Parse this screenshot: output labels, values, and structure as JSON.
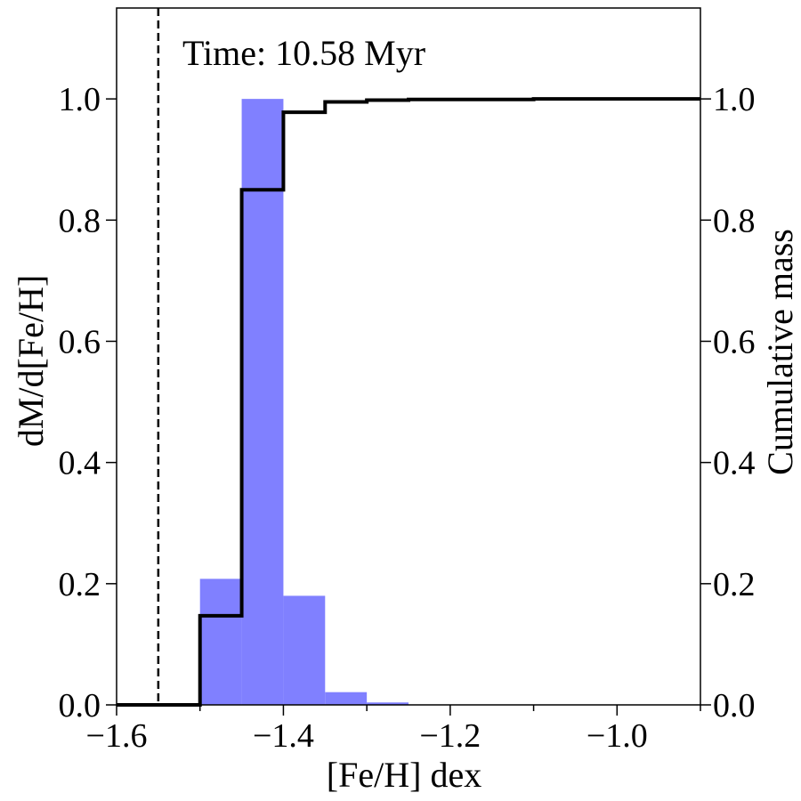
{
  "chart_data": {
    "type": "bar",
    "annotation": "Time: 10.58 Myr",
    "xlabel": "[Fe/H] dex",
    "ylabel_left": "dM/d[Fe/H]",
    "ylabel_right": "Cumulative mass",
    "xlim": [
      -1.6,
      -0.9
    ],
    "ylim_left": [
      0.0,
      1.15
    ],
    "ylim_right": [
      0.0,
      1.15
    ],
    "x_ticks": [
      -1.6,
      -1.4,
      -1.2,
      -1.0
    ],
    "x_tick_labels": [
      "−1.6",
      "−1.4",
      "−1.2",
      "−1.0"
    ],
    "x_minor_ticks": [
      -1.5,
      -1.3,
      -1.1,
      -0.9
    ],
    "y_ticks": [
      0.0,
      0.2,
      0.4,
      0.6,
      0.8,
      1.0
    ],
    "y_tick_labels": [
      "0.0",
      "0.2",
      "0.4",
      "0.6",
      "0.8",
      "1.0"
    ],
    "histogram": {
      "color": "#8080ff",
      "bin_edges": [
        -1.5,
        -1.45,
        -1.4,
        -1.35,
        -1.3,
        -1.25
      ],
      "values": [
        0.208,
        1.0,
        0.18,
        0.021,
        0.004
      ]
    },
    "cumulative": {
      "color": "#000000",
      "x": [
        -1.6,
        -1.5,
        -1.45,
        -1.4,
        -1.35,
        -1.3,
        -1.25,
        -1.1,
        -0.9
      ],
      "y": [
        0.0,
        0.147,
        0.85,
        0.978,
        0.995,
        0.998,
        0.999,
        1.0,
        1.0
      ]
    },
    "vline": {
      "x": -1.55,
      "style": "dashed",
      "color": "#000000"
    },
    "grid": false
  }
}
